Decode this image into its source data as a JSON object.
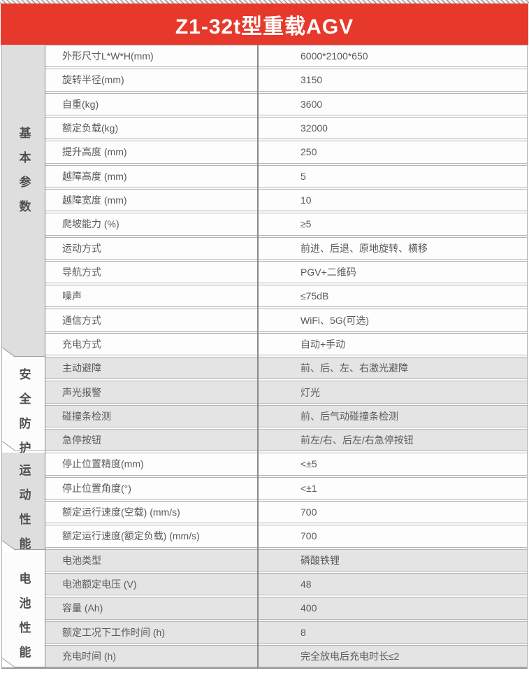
{
  "header": {
    "title": "Z1-32t型重载AGV"
  },
  "table": {
    "sections": [
      {
        "title": "基本参数",
        "rows": [
          {
            "label": "外形尺寸L*W*H(mm)",
            "value": "6000*2100*650"
          },
          {
            "label": "旋转半径(mm)",
            "value": "3150"
          },
          {
            "label": "自重(kg)",
            "value": "3600"
          },
          {
            "label": "额定负载(kg)",
            "value": "32000"
          },
          {
            "label": "提升高度 (mm)",
            "value": "250"
          },
          {
            "label": "越障高度 (mm)",
            "value": "5"
          },
          {
            "label": "越障宽度 (mm)",
            "value": "10"
          },
          {
            "label": "爬坡能力 (%)",
            "value": "≥5"
          },
          {
            "label": "运动方式",
            "value": "前进、后退、原地旋转、横移"
          },
          {
            "label": "导航方式",
            "value": "PGV+二维码"
          },
          {
            "label": "噪声",
            "value": "≤75dB"
          },
          {
            "label": "通信方式",
            "value": "WiFi、5G(可选)"
          },
          {
            "label": "充电方式",
            "value": "自动+手动"
          }
        ]
      },
      {
        "title": "安全防护",
        "rows": [
          {
            "label": "主动避障",
            "value": "前、后、左、右激光避障"
          },
          {
            "label": "声光报警",
            "value": "灯光"
          },
          {
            "label": "碰撞条检测",
            "value": "前、后气动碰撞条检测"
          },
          {
            "label": "急停按钮",
            "value": "前左/右、后左/右急停按钮"
          }
        ]
      },
      {
        "title": "运动性能",
        "rows": [
          {
            "label": "停止位置精度(mm)",
            "value": "<±5"
          },
          {
            "label": "停止位置角度(°)",
            "value": "<±1"
          },
          {
            "label": "额定运行速度(空载) (mm/s)",
            "value": "700"
          },
          {
            "label": "额定运行速度(额定负载) (mm/s)",
            "value": "700"
          }
        ]
      },
      {
        "title": "电池性能",
        "rows": [
          {
            "label": "电池类型",
            "value": "磷酸铁锂"
          },
          {
            "label": "电池额定电压 (V)",
            "value": "48"
          },
          {
            "label": "容量 (Ah)",
            "value": "400"
          },
          {
            "label": "额定工况下工作时间 (h)",
            "value": "8"
          },
          {
            "label": "充电时间 (h)",
            "value": "完全放电后充电时长≤2"
          }
        ]
      }
    ]
  },
  "colors": {
    "header_bg": "#E6392B",
    "header_text": "#FFFFFF",
    "row_white": "#FDFDFD",
    "row_gray": "#E4E4E4",
    "sidebar_gray": "#DEDEDE",
    "sidebar_light": "#FCFCFC",
    "border": "#B3B3B3",
    "text": "#58595B"
  }
}
